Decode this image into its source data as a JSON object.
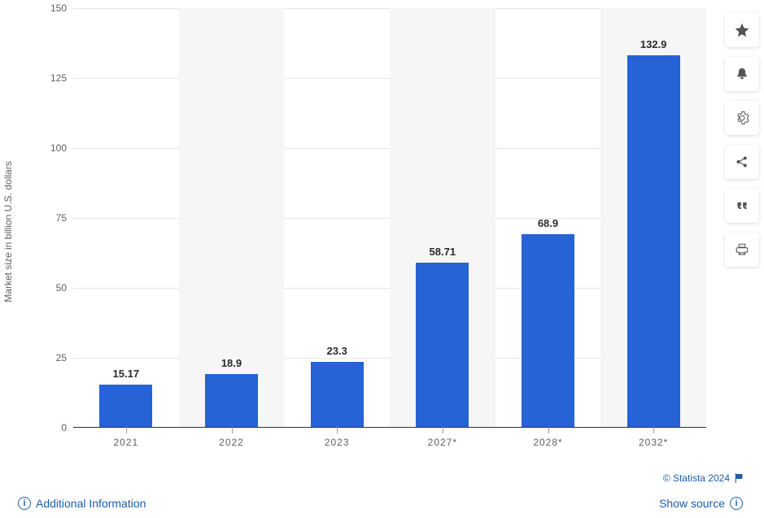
{
  "chart": {
    "type": "bar",
    "y_axis_label": "Market size in billion U.S. dollars",
    "categories": [
      "2021",
      "2022",
      "2023",
      "2027*",
      "2028*",
      "2032*"
    ],
    "values": [
      15.17,
      18.9,
      23.3,
      58.71,
      68.9,
      132.9
    ],
    "value_labels": [
      "15.17",
      "18.9",
      "23.3",
      "58.71",
      "68.9",
      "132.9"
    ],
    "bar_color": "#2563d6",
    "background_color": "#ffffff",
    "alt_band_color": "#f6f6f6",
    "grid_color": "#e6e6e6",
    "axis_line_color": "#333333",
    "label_color": "#606060",
    "value_label_color": "#2a2a2a",
    "ylim": [
      0,
      150
    ],
    "ytick_step": 25,
    "yticks": [
      0,
      25,
      50,
      75,
      100,
      125,
      150
    ],
    "bar_width_ratio": 0.5,
    "value_label_fontsize": 13,
    "tick_fontsize": 12,
    "axis_label_fontsize": 12
  },
  "footer": {
    "copyright": "© Statista 2024",
    "additional_info": "Additional Information",
    "show_source": "Show source"
  },
  "toolbar": {
    "items": [
      {
        "name": "star-icon"
      },
      {
        "name": "bell-icon"
      },
      {
        "name": "gear-icon"
      },
      {
        "name": "share-icon"
      },
      {
        "name": "quote-icon"
      },
      {
        "name": "print-icon"
      }
    ]
  }
}
